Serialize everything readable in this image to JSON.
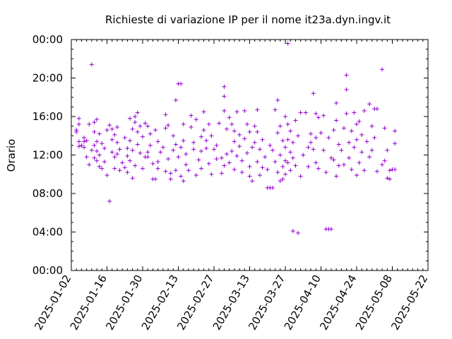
{
  "chart_data": {
    "type": "scatter",
    "title": "Richieste di variazione IP per il nome it23a.dyn.ingv.it",
    "xlabel": "",
    "ylabel": "Orario",
    "xlim": [
      "2025-01-02",
      "2025-05-22"
    ],
    "ylim": [
      0,
      24
    ],
    "x_tick_labels": [
      "2025-01-02",
      "2025-01-16",
      "2025-01-30",
      "2025-02-13",
      "2025-02-27",
      "2025-03-13",
      "2025-03-27",
      "2025-04-10",
      "2025-04-24",
      "2025-05-08",
      "2025-05-22"
    ],
    "y_tick_labels": [
      "00:00",
      "04:00",
      "08:00",
      "12:00",
      "16:00",
      "20:00",
      "00:00"
    ],
    "grid": false,
    "marker": "plus",
    "series": [
      {
        "color": "#9400d3",
        "points": [
          [
            "2025-01-04",
            14.6
          ],
          [
            "2025-01-04",
            14.4
          ],
          [
            "2025-01-05",
            12.9
          ],
          [
            "2025-01-05",
            13.4
          ],
          [
            "2025-01-05",
            15.8
          ],
          [
            "2025-01-05",
            15.2
          ],
          [
            "2025-01-06",
            13.0
          ],
          [
            "2025-01-07",
            13.8
          ],
          [
            "2025-01-07",
            13.4
          ],
          [
            "2025-01-07",
            12.8
          ],
          [
            "2025-01-08",
            11.8
          ],
          [
            "2025-01-08",
            13.5
          ],
          [
            "2025-01-09",
            11.0
          ],
          [
            "2025-01-09",
            15.2
          ],
          [
            "2025-01-10",
            21.4
          ],
          [
            "2025-01-10",
            12.5
          ],
          [
            "2025-01-11",
            14.4
          ],
          [
            "2025-01-11",
            15.4
          ],
          [
            "2025-01-11",
            13.0
          ],
          [
            "2025-01-11",
            11.7
          ],
          [
            "2025-01-12",
            15.7
          ],
          [
            "2025-01-12",
            13.4
          ],
          [
            "2025-01-12",
            12.4
          ],
          [
            "2025-01-12",
            11.4
          ],
          [
            "2025-01-13",
            10.8
          ],
          [
            "2025-01-13",
            14.2
          ],
          [
            "2025-01-13",
            12.0
          ],
          [
            "2025-01-14",
            10.6
          ],
          [
            "2025-01-14",
            13.2
          ],
          [
            "2025-01-15",
            12.7
          ],
          [
            "2025-01-15",
            11.3
          ],
          [
            "2025-01-16",
            9.9
          ],
          [
            "2025-01-16",
            14.6
          ],
          [
            "2025-01-17",
            7.2
          ],
          [
            "2025-01-17",
            15.1
          ],
          [
            "2025-01-18",
            14.7
          ],
          [
            "2025-01-18",
            12.3
          ],
          [
            "2025-01-18",
            13.6
          ],
          [
            "2025-01-19",
            11.8
          ],
          [
            "2025-01-19",
            10.6
          ],
          [
            "2025-01-19",
            14.1
          ],
          [
            "2025-01-20",
            13.3
          ],
          [
            "2025-01-20",
            12.1
          ],
          [
            "2025-01-20",
            14.9
          ],
          [
            "2025-01-21",
            10.4
          ],
          [
            "2025-01-21",
            12.6
          ],
          [
            "2025-01-22",
            11.2
          ],
          [
            "2025-01-23",
            10.7
          ],
          [
            "2025-01-23",
            13.8
          ],
          [
            "2025-01-24",
            11.9
          ],
          [
            "2025-01-24",
            12.7
          ],
          [
            "2025-01-24",
            10.2
          ],
          [
            "2025-01-25",
            15.8
          ],
          [
            "2025-01-25",
            13.5
          ],
          [
            "2025-01-25",
            11.4
          ],
          [
            "2025-01-26",
            12.5
          ],
          [
            "2025-01-26",
            14.7
          ],
          [
            "2025-01-26",
            9.6
          ],
          [
            "2025-01-27",
            16.0
          ],
          [
            "2025-01-27",
            15.4
          ],
          [
            "2025-01-27",
            10.9
          ],
          [
            "2025-01-28",
            13.1
          ],
          [
            "2025-01-28",
            16.4
          ],
          [
            "2025-01-28",
            14.4
          ],
          [
            "2025-01-29",
            12.2
          ],
          [
            "2025-01-29",
            15.0
          ],
          [
            "2025-01-30",
            10.6
          ],
          [
            "2025-01-30",
            13.9
          ],
          [
            "2025-01-31",
            15.3
          ],
          [
            "2025-01-31",
            11.8
          ],
          [
            "2025-02-01",
            11.8
          ],
          [
            "2025-02-01",
            12.3
          ],
          [
            "2025-02-01",
            15.0
          ],
          [
            "2025-02-02",
            14.2
          ],
          [
            "2025-02-02",
            13.0
          ],
          [
            "2025-02-03",
            9.5
          ],
          [
            "2025-02-03",
            11.1
          ],
          [
            "2025-02-04",
            9.5
          ],
          [
            "2025-02-04",
            14.6
          ],
          [
            "2025-02-05",
            11.3
          ],
          [
            "2025-02-05",
            10.6
          ],
          [
            "2025-02-05",
            13.4
          ],
          [
            "2025-02-06",
            12.3
          ],
          [
            "2025-02-07",
            12.8
          ],
          [
            "2025-02-08",
            14.8
          ],
          [
            "2025-02-08",
            16.2
          ],
          [
            "2025-02-08",
            10.3
          ],
          [
            "2025-02-09",
            15.1
          ],
          [
            "2025-02-09",
            11.6
          ],
          [
            "2025-02-10",
            10.1
          ],
          [
            "2025-02-10",
            9.5
          ],
          [
            "2025-02-11",
            12.5
          ],
          [
            "2025-02-11",
            14.0
          ],
          [
            "2025-02-12",
            17.7
          ],
          [
            "2025-02-12",
            10.4
          ],
          [
            "2025-02-12",
            13.1
          ],
          [
            "2025-02-13",
            19.4
          ],
          [
            "2025-02-13",
            11.8
          ],
          [
            "2025-02-14",
            19.4
          ],
          [
            "2025-02-14",
            12.8
          ],
          [
            "2025-02-14",
            9.8
          ],
          [
            "2025-02-15",
            15.2
          ],
          [
            "2025-02-15",
            13.5
          ],
          [
            "2025-02-15",
            9.3
          ],
          [
            "2025-02-16",
            12.1
          ],
          [
            "2025-02-16",
            11.0
          ],
          [
            "2025-02-17",
            10.4
          ],
          [
            "2025-02-18",
            14.9
          ],
          [
            "2025-02-18",
            16.1
          ],
          [
            "2025-02-19",
            12.6
          ],
          [
            "2025-02-19",
            13.3
          ],
          [
            "2025-02-20",
            9.9
          ],
          [
            "2025-02-20",
            15.7
          ],
          [
            "2025-02-21",
            11.5
          ],
          [
            "2025-02-22",
            13.9
          ],
          [
            "2025-02-22",
            12.4
          ],
          [
            "2025-02-22",
            10.6
          ],
          [
            "2025-02-23",
            14.6
          ],
          [
            "2025-02-23",
            16.5
          ],
          [
            "2025-02-24",
            12.7
          ],
          [
            "2025-02-24",
            13.5
          ],
          [
            "2025-02-25",
            11.1
          ],
          [
            "2025-02-25",
            15.2
          ],
          [
            "2025-02-26",
            14.0
          ],
          [
            "2025-02-26",
            10.0
          ],
          [
            "2025-02-27",
            12.6
          ],
          [
            "2025-02-28",
            13.0
          ],
          [
            "2025-02-28",
            11.6
          ],
          [
            "2025-03-01",
            15.3
          ],
          [
            "2025-03-02",
            10.1
          ],
          [
            "2025-03-02",
            11.7
          ],
          [
            "2025-03-03",
            19.1
          ],
          [
            "2025-03-03",
            18.1
          ],
          [
            "2025-03-03",
            16.6
          ],
          [
            "2025-03-03",
            10.9
          ],
          [
            "2025-03-04",
            14.7
          ],
          [
            "2025-03-04",
            12.1
          ],
          [
            "2025-03-05",
            15.9
          ],
          [
            "2025-03-05",
            11.2
          ],
          [
            "2025-03-06",
            15.2
          ],
          [
            "2025-03-06",
            12.4
          ],
          [
            "2025-03-07",
            14.5
          ],
          [
            "2025-03-07",
            10.5
          ],
          [
            "2025-03-07",
            13.4
          ],
          [
            "2025-03-08",
            16.5
          ],
          [
            "2025-03-08",
            11.9
          ],
          [
            "2025-03-09",
            14.1
          ],
          [
            "2025-03-09",
            12.9
          ],
          [
            "2025-03-10",
            11.4
          ],
          [
            "2025-03-10",
            10.2
          ],
          [
            "2025-03-11",
            16.6
          ],
          [
            "2025-03-11",
            13.7
          ],
          [
            "2025-03-12",
            15.2
          ],
          [
            "2025-03-12",
            12.2
          ],
          [
            "2025-03-13",
            9.8
          ],
          [
            "2025-03-13",
            14.4
          ],
          [
            "2025-03-13",
            10.8
          ],
          [
            "2025-03-14",
            9.3
          ],
          [
            "2025-03-14",
            12.8
          ],
          [
            "2025-03-15",
            15.0
          ],
          [
            "2025-03-15",
            13.3
          ],
          [
            "2025-03-16",
            14.4
          ],
          [
            "2025-03-16",
            11.3
          ],
          [
            "2025-03-16",
            16.7
          ],
          [
            "2025-03-17",
            9.9
          ],
          [
            "2025-03-17",
            12.6
          ],
          [
            "2025-03-18",
            10.7
          ],
          [
            "2025-03-18",
            13.6
          ],
          [
            "2025-03-19",
            11.8
          ],
          [
            "2025-03-20",
            8.6
          ],
          [
            "2025-03-20",
            10.5
          ],
          [
            "2025-03-21",
            8.6
          ],
          [
            "2025-03-21",
            13.0
          ],
          [
            "2025-03-22",
            8.6
          ],
          [
            "2025-03-22",
            12.5
          ],
          [
            "2025-03-23",
            16.7
          ],
          [
            "2025-03-23",
            11.3
          ],
          [
            "2025-03-24",
            17.7
          ],
          [
            "2025-03-24",
            10.2
          ],
          [
            "2025-03-24",
            14.3
          ],
          [
            "2025-03-25",
            9.3
          ],
          [
            "2025-03-25",
            12.0
          ],
          [
            "2025-03-25",
            15.0
          ],
          [
            "2025-03-26",
            10.8
          ],
          [
            "2025-03-26",
            13.5
          ],
          [
            "2025-03-26",
            9.5
          ],
          [
            "2025-03-27",
            11.4
          ],
          [
            "2025-03-27",
            16.0
          ],
          [
            "2025-03-27",
            12.8
          ],
          [
            "2025-03-27",
            10.0
          ],
          [
            "2025-03-28",
            23.6
          ],
          [
            "2025-03-28",
            13.6
          ],
          [
            "2025-03-28",
            15.2
          ],
          [
            "2025-03-28",
            11.2
          ],
          [
            "2025-03-29",
            14.5
          ],
          [
            "2025-03-29",
            10.4
          ],
          [
            "2025-03-29",
            12.3
          ],
          [
            "2025-03-30",
            4.1
          ],
          [
            "2025-03-30",
            13.3
          ],
          [
            "2025-03-30",
            11.7
          ],
          [
            "2025-03-31",
            15.6
          ],
          [
            "2025-03-31",
            10.9
          ],
          [
            "2025-04-01",
            3.9
          ],
          [
            "2025-04-01",
            14.0
          ],
          [
            "2025-04-02",
            9.8
          ],
          [
            "2025-04-02",
            16.4
          ],
          [
            "2025-04-03",
            12.0
          ],
          [
            "2025-04-04",
            16.4
          ],
          [
            "2025-04-05",
            12.8
          ],
          [
            "2025-04-05",
            10.8
          ],
          [
            "2025-04-06",
            14.2
          ],
          [
            "2025-04-06",
            13.3
          ],
          [
            "2025-04-07",
            18.4
          ],
          [
            "2025-04-07",
            12.6
          ],
          [
            "2025-04-08",
            16.3
          ],
          [
            "2025-04-08",
            11.2
          ],
          [
            "2025-04-08",
            13.8
          ],
          [
            "2025-04-09",
            15.9
          ],
          [
            "2025-04-09",
            10.6
          ],
          [
            "2025-04-10",
            14.3
          ],
          [
            "2025-04-11",
            12.5
          ],
          [
            "2025-04-11",
            16.1
          ],
          [
            "2025-04-12",
            4.3
          ],
          [
            "2025-04-12",
            10.2
          ],
          [
            "2025-04-13",
            4.3
          ],
          [
            "2025-04-13",
            13.8
          ],
          [
            "2025-04-14",
            4.3
          ],
          [
            "2025-04-14",
            11.7
          ],
          [
            "2025-04-15",
            14.6
          ],
          [
            "2025-04-15",
            11.5
          ],
          [
            "2025-04-16",
            17.4
          ],
          [
            "2025-04-16",
            15.6
          ],
          [
            "2025-04-16",
            9.8
          ],
          [
            "2025-04-17",
            13.1
          ],
          [
            "2025-04-17",
            10.9
          ],
          [
            "2025-04-18",
            12.5
          ],
          [
            "2025-04-19",
            14.8
          ],
          [
            "2025-04-19",
            11.0
          ],
          [
            "2025-04-20",
            20.3
          ],
          [
            "2025-04-20",
            18.8
          ],
          [
            "2025-04-20",
            16.3
          ],
          [
            "2025-04-21",
            13.3
          ],
          [
            "2025-04-21",
            11.7
          ],
          [
            "2025-04-22",
            14.5
          ],
          [
            "2025-04-22",
            10.5
          ],
          [
            "2025-04-23",
            16.4
          ],
          [
            "2025-04-23",
            12.8
          ],
          [
            "2025-04-24",
            15.2
          ],
          [
            "2025-04-24",
            13.6
          ],
          [
            "2025-04-24",
            9.9
          ],
          [
            "2025-04-25",
            11.2
          ],
          [
            "2025-04-25",
            15.5
          ],
          [
            "2025-04-26",
            14.1
          ],
          [
            "2025-04-26",
            12.3
          ],
          [
            "2025-04-27",
            10.4
          ],
          [
            "2025-04-27",
            16.6
          ],
          [
            "2025-04-28",
            13.4
          ],
          [
            "2025-04-29",
            11.8
          ],
          [
            "2025-04-29",
            17.3
          ],
          [
            "2025-04-30",
            15.0
          ],
          [
            "2025-04-30",
            12.5
          ],
          [
            "2025-05-01",
            16.8
          ],
          [
            "2025-05-01",
            13.8
          ],
          [
            "2025-05-02",
            10.3
          ],
          [
            "2025-05-02",
            16.8
          ],
          [
            "2025-05-04",
            20.9
          ],
          [
            "2025-05-04",
            11.0
          ],
          [
            "2025-05-05",
            11.4
          ],
          [
            "2025-05-05",
            14.8
          ],
          [
            "2025-05-06",
            12.5
          ],
          [
            "2025-05-06",
            9.6
          ],
          [
            "2025-05-07",
            10.4
          ],
          [
            "2025-05-07",
            9.5
          ],
          [
            "2025-05-08",
            10.5
          ],
          [
            "2025-05-09",
            14.5
          ],
          [
            "2025-05-09",
            13.2
          ],
          [
            "2025-05-09",
            10.5
          ]
        ]
      }
    ]
  }
}
